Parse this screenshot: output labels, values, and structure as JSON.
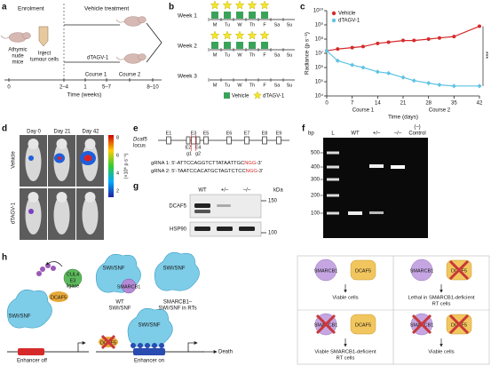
{
  "panel_a": {
    "label": "a",
    "enrolment": "Enrolment",
    "vehicle_treatment": "Vehicle treatment",
    "mice": [
      "Athymic",
      "nude",
      "mice"
    ],
    "inject": [
      "Inject",
      "tumour cells"
    ],
    "dtag": "dTAGV-1",
    "course1": "Course 1",
    "course2": "Course 2",
    "ticks": [
      "0",
      "2–4",
      "1",
      "5–7",
      "8–10"
    ],
    "axis_label": "Time (weeks)"
  },
  "panel_b": {
    "label": "b",
    "weeks": [
      "Week 1",
      "Week 2",
      "Week 3"
    ],
    "days": [
      "M",
      "Tu",
      "W",
      "Th",
      "F",
      "Sa",
      "Su"
    ],
    "legend": [
      "Vehicle",
      "dTAGV-1"
    ]
  },
  "chart_data": {
    "type": "line",
    "panel_label": "c",
    "log_y": true,
    "x": [
      0,
      3,
      7,
      10,
      14,
      17,
      21,
      24,
      28,
      31,
      35,
      42
    ],
    "series": [
      {
        "name": "Vehicle",
        "color": "#d62a2a",
        "values": [
          15000000,
          20000000,
          25000000,
          30000000,
          50000000,
          60000000,
          80000000,
          80000000,
          100000000,
          120000000,
          150000000,
          800000000
        ]
      },
      {
        "name": "dTAGV-1",
        "color": "#5fc3e4",
        "values": [
          15000000,
          3000000,
          1500000,
          1000000,
          500000,
          400000,
          200000,
          120000,
          80000,
          60000,
          50000,
          50000
        ]
      }
    ],
    "xlim": [
      0,
      42
    ],
    "xticks": [
      0,
      7,
      14,
      21,
      28,
      35,
      42
    ],
    "ylim": [
      10000,
      10000000000
    ],
    "yticks": [
      {
        "value": 10000,
        "label": "10⁴"
      },
      {
        "value": 100000,
        "label": "10⁵"
      },
      {
        "value": 1000000,
        "label": "10⁶"
      },
      {
        "value": 10000000,
        "label": "10⁷"
      },
      {
        "value": 100000000,
        "label": "10⁸"
      },
      {
        "value": 1000000000,
        "label": "10⁹"
      },
      {
        "value": 10000000000,
        "label": "10¹⁰"
      }
    ],
    "y_label": "Radiance (p s⁻¹)",
    "x_label": "Time (days)",
    "annotations": [
      "Course 1",
      "Course 2",
      "***"
    ],
    "legend_loc": "upper left"
  },
  "panel_d": {
    "label": "d",
    "days": [
      "Day 0",
      "Day 21",
      "Day 42"
    ],
    "rows": [
      "Vehicle",
      "dTAGV-1"
    ],
    "colorbar_ticks": [
      "8",
      "6",
      "4",
      "2"
    ],
    "colorbar_label": "(×10⁶ p s⁻¹)"
  },
  "panel_e": {
    "label": "e",
    "locus": [
      "Dcaf5",
      "locus"
    ],
    "exons_top": [
      "E1",
      "E3",
      "E5",
      "E6",
      "E7",
      "E8",
      "E9"
    ],
    "exons_bottom": [
      "E2",
      "E4"
    ],
    "guides": [
      "g1",
      "g2"
    ],
    "grna": [
      {
        "prefix": "gRNA 1: 5'-ATTCCAGGTCTTATAATTGC",
        "pam": "NGG",
        "suffix": "-3'"
      },
      {
        "prefix": "gRNA 2: 5'-TAATCCACATGCTAGTCTCC",
        "pam": "NGG",
        "suffix": "-3'"
      }
    ]
  },
  "panel_f": {
    "label": "f",
    "bp": "bp",
    "lanes": [
      "L",
      "WT",
      "+/–",
      "–/–",
      "(–)",
      "Control"
    ],
    "ladder": [
      "500",
      "400",
      "300",
      "200",
      "100"
    ]
  },
  "panel_g": {
    "label": "g",
    "lanes": [
      "WT",
      "+/–",
      "–/–"
    ],
    "kda": "kDa",
    "proteins": [
      "DCAF5",
      "HSP90"
    ],
    "markers": [
      "150",
      "100"
    ]
  },
  "panel_h": {
    "label": "h",
    "left": {
      "swisnf": "SWI/SNF",
      "dcaf5": "DCAF5",
      "cul4": "CUL4",
      "e3": [
        "E3",
        "ligase"
      ],
      "enhancer_off": "Enhancer off",
      "enhancer_on": "Enhancer on",
      "death": "Death"
    },
    "middle": {
      "swisnf": "SWI/SNF",
      "smarcb1": "SMARCB1",
      "wt": [
        "WT",
        "SWI/SNF"
      ],
      "rt": [
        "SMARCB1–",
        "SWI/SNF in RTs"
      ]
    },
    "grid": [
      {
        "a": "SMARCB1",
        "b": "DCAF5",
        "outcome": [
          "Viable cells"
        ]
      },
      {
        "a": "SMARCB1",
        "b": "DCAF5",
        "outcome": [
          "Lethal in SMARCB1-deficient",
          "RT cells"
        ]
      },
      {
        "a": "SMARCB1",
        "b": "DCAF5",
        "outcome": [
          "Viable SMARCB1-deficient",
          "RT cells"
        ]
      },
      {
        "a": "SMARCB1",
        "b": "DCAF5",
        "outcome": [
          "Viable cells"
        ]
      }
    ]
  }
}
